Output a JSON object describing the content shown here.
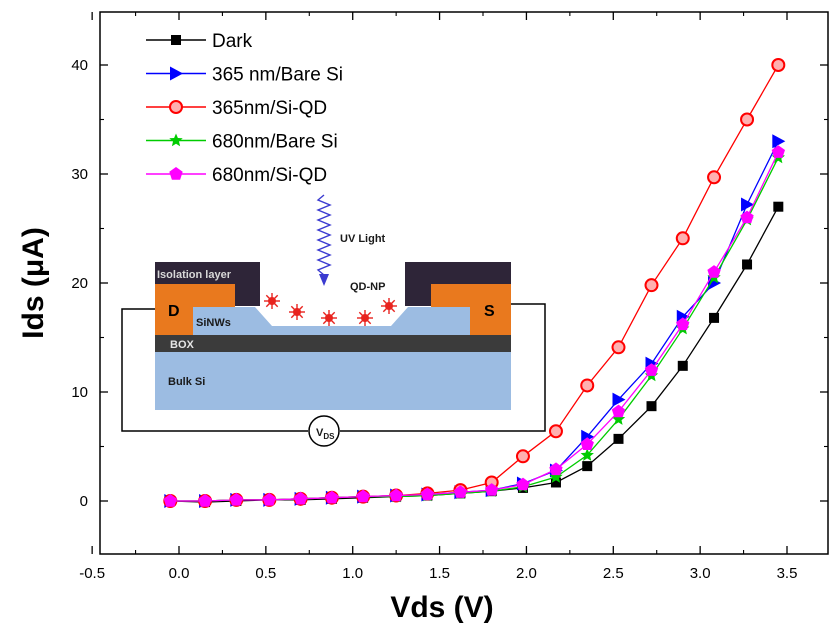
{
  "chart_data": {
    "type": "line",
    "xlabel": "Vds (V)",
    "ylabel": "Ids (μA)",
    "xlim": [
      -0.5,
      3.7
    ],
    "ylim": [
      -5,
      44
    ],
    "xticks": [
      "-0.5",
      "0.0",
      "0.5",
      "1.0",
      "1.5",
      "2.0",
      "2.5",
      "3.0",
      "3.5"
    ],
    "yticks": [
      "0",
      "10",
      "20",
      "30",
      "40"
    ],
    "x": [
      -0.05,
      0.15,
      0.33,
      0.52,
      0.7,
      0.88,
      1.06,
      1.25,
      1.43,
      1.62,
      1.8,
      1.98,
      2.17,
      2.35,
      2.53,
      2.72,
      2.9,
      3.08,
      3.27,
      3.45
    ],
    "legend_position": "top-left",
    "series": [
      {
        "name": "Dark",
        "color": "#000000",
        "marker": "square",
        "values": [
          0.0,
          -0.1,
          0.0,
          0.1,
          0.1,
          0.2,
          0.3,
          0.4,
          0.5,
          0.7,
          0.9,
          1.2,
          1.7,
          3.2,
          5.7,
          8.7,
          12.4,
          16.8,
          21.7,
          27.0
        ]
      },
      {
        "name": "365 nm/Bare Si",
        "color": "#0000ff",
        "marker": "triangle-right",
        "values": [
          0.0,
          0.0,
          0.1,
          0.1,
          0.2,
          0.3,
          0.4,
          0.5,
          0.6,
          0.8,
          1.0,
          1.6,
          2.8,
          5.9,
          9.3,
          12.6,
          16.9,
          20.0,
          27.2,
          33.0
        ]
      },
      {
        "name": "365nm/Si-QD",
        "color": "#ff0000",
        "marker": "circle",
        "values": [
          0.0,
          0.0,
          0.1,
          0.1,
          0.2,
          0.3,
          0.4,
          0.5,
          0.7,
          1.0,
          1.7,
          4.1,
          6.4,
          10.6,
          14.1,
          19.8,
          24.1,
          29.7,
          35.0,
          40.0
        ]
      },
      {
        "name": "680nm/Bare Si",
        "color": "#00cc00",
        "marker": "star",
        "values": [
          0.0,
          0.0,
          0.1,
          0.1,
          0.2,
          0.3,
          0.4,
          0.4,
          0.5,
          0.7,
          0.9,
          1.3,
          2.2,
          4.2,
          7.5,
          11.5,
          15.8,
          20.5,
          25.8,
          31.5
        ]
      },
      {
        "name": "680nm/Si-QD",
        "color": "#ff00ff",
        "marker": "pentagon",
        "values": [
          0.0,
          0.0,
          0.1,
          0.1,
          0.2,
          0.3,
          0.4,
          0.5,
          0.6,
          0.8,
          1.0,
          1.5,
          2.9,
          5.2,
          8.2,
          12.0,
          16.2,
          21.0,
          26.0,
          32.0
        ]
      }
    ]
  },
  "inset": {
    "isolation_label": "Isolation layer",
    "drain_label": "D",
    "source_label": "S",
    "siwnws_label": "SiNWs",
    "box_label": "BOX",
    "bulk_label": "Bulk Si",
    "uv_label": "UV Light",
    "qd_label": "QD-NP",
    "vds_label_main": "V",
    "vds_label_sub": "DS"
  }
}
